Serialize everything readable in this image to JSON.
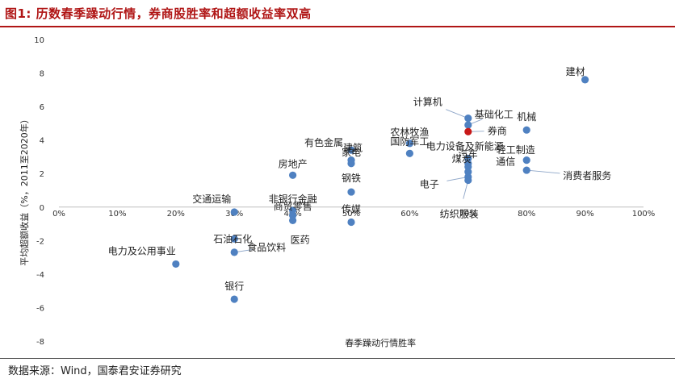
{
  "figure_title": "图1:  历数春季躁动行情，券商股胜率和超额收益率双高",
  "source_text": "数据来源：Wind，国泰君安证券研究",
  "chart_data": {
    "type": "scatter",
    "xlabel": "春季躁动行情胜率",
    "ylabel": "平均超额收益（%，2011至2020年）",
    "xlim": [
      0,
      100
    ],
    "ylim": [
      -8,
      10
    ],
    "x_ticks": [
      0,
      10,
      20,
      30,
      40,
      50,
      60,
      70,
      80,
      90,
      100
    ],
    "x_tick_labels": [
      "0%",
      "10%",
      "20%",
      "30%",
      "40%",
      "50%",
      "60%",
      "70%",
      "80%",
      "90%",
      "100%"
    ],
    "y_ticks": [
      -8,
      -6,
      -4,
      -2,
      0,
      2,
      4,
      6,
      8,
      10
    ],
    "y_tick_labels": [
      "-8",
      "-6",
      "-4",
      "-2",
      "0",
      "2",
      "4",
      "6",
      "8",
      "10"
    ],
    "grid": false,
    "colors": {
      "point": "#4f81c1",
      "highlight": "#c81818",
      "leader": "#8ea6c8",
      "title": "#b01616"
    },
    "points": [
      {
        "name": "建材",
        "x": 90,
        "y": 7.6
      },
      {
        "name": "计算机",
        "x": 70,
        "y": 5.3
      },
      {
        "name": "基础化工",
        "x": 70,
        "y": 4.9
      },
      {
        "name": "券商",
        "x": 70,
        "y": 4.5,
        "highlight": true
      },
      {
        "name": "机械",
        "x": 80,
        "y": 4.6
      },
      {
        "name": "通信",
        "x": 80,
        "y": 2.8
      },
      {
        "name": "消费者服务",
        "x": 80,
        "y": 2.2
      },
      {
        "name": "有色金属",
        "x": 50,
        "y": 3.4
      },
      {
        "name": "建筑",
        "x": 50,
        "y": 2.8
      },
      {
        "name": "家电",
        "x": 50,
        "y": 2.6
      },
      {
        "name": "钢铁",
        "x": 50,
        "y": 0.9
      },
      {
        "name": "传媒",
        "x": 50,
        "y": -0.9
      },
      {
        "name": "农林牧渔",
        "x": 60,
        "y": 3.8
      },
      {
        "name": "国防军工",
        "x": 60,
        "y": 3.2
      },
      {
        "name": "电力设备及新能源",
        "x": 70,
        "y": 2.9
      },
      {
        "name": "轻工制造",
        "x": 70,
        "y": 2.6
      },
      {
        "name": "汽车",
        "x": 70,
        "y": 2.4
      },
      {
        "name": "煤炭",
        "x": 70,
        "y": 2.1
      },
      {
        "name": "电子",
        "x": 70,
        "y": 1.8
      },
      {
        "name": "纺织服装",
        "x": 70,
        "y": 1.6
      },
      {
        "name": "房地产",
        "x": 40,
        "y": 1.9
      },
      {
        "name": "非银行金融",
        "x": 40,
        "y": -0.2
      },
      {
        "name": "商贸零售",
        "x": 40,
        "y": -0.5
      },
      {
        "name": "医药",
        "x": 40,
        "y": -0.8
      },
      {
        "name": "交通运输",
        "x": 30,
        "y": -0.3
      },
      {
        "name": "石油石化",
        "x": 30,
        "y": -1.9
      },
      {
        "name": "食品饮料",
        "x": 30,
        "y": -2.7
      },
      {
        "name": "电力及公用事业",
        "x": 20,
        "y": -3.4
      },
      {
        "name": "银行",
        "x": 30,
        "y": -5.5
      }
    ]
  }
}
